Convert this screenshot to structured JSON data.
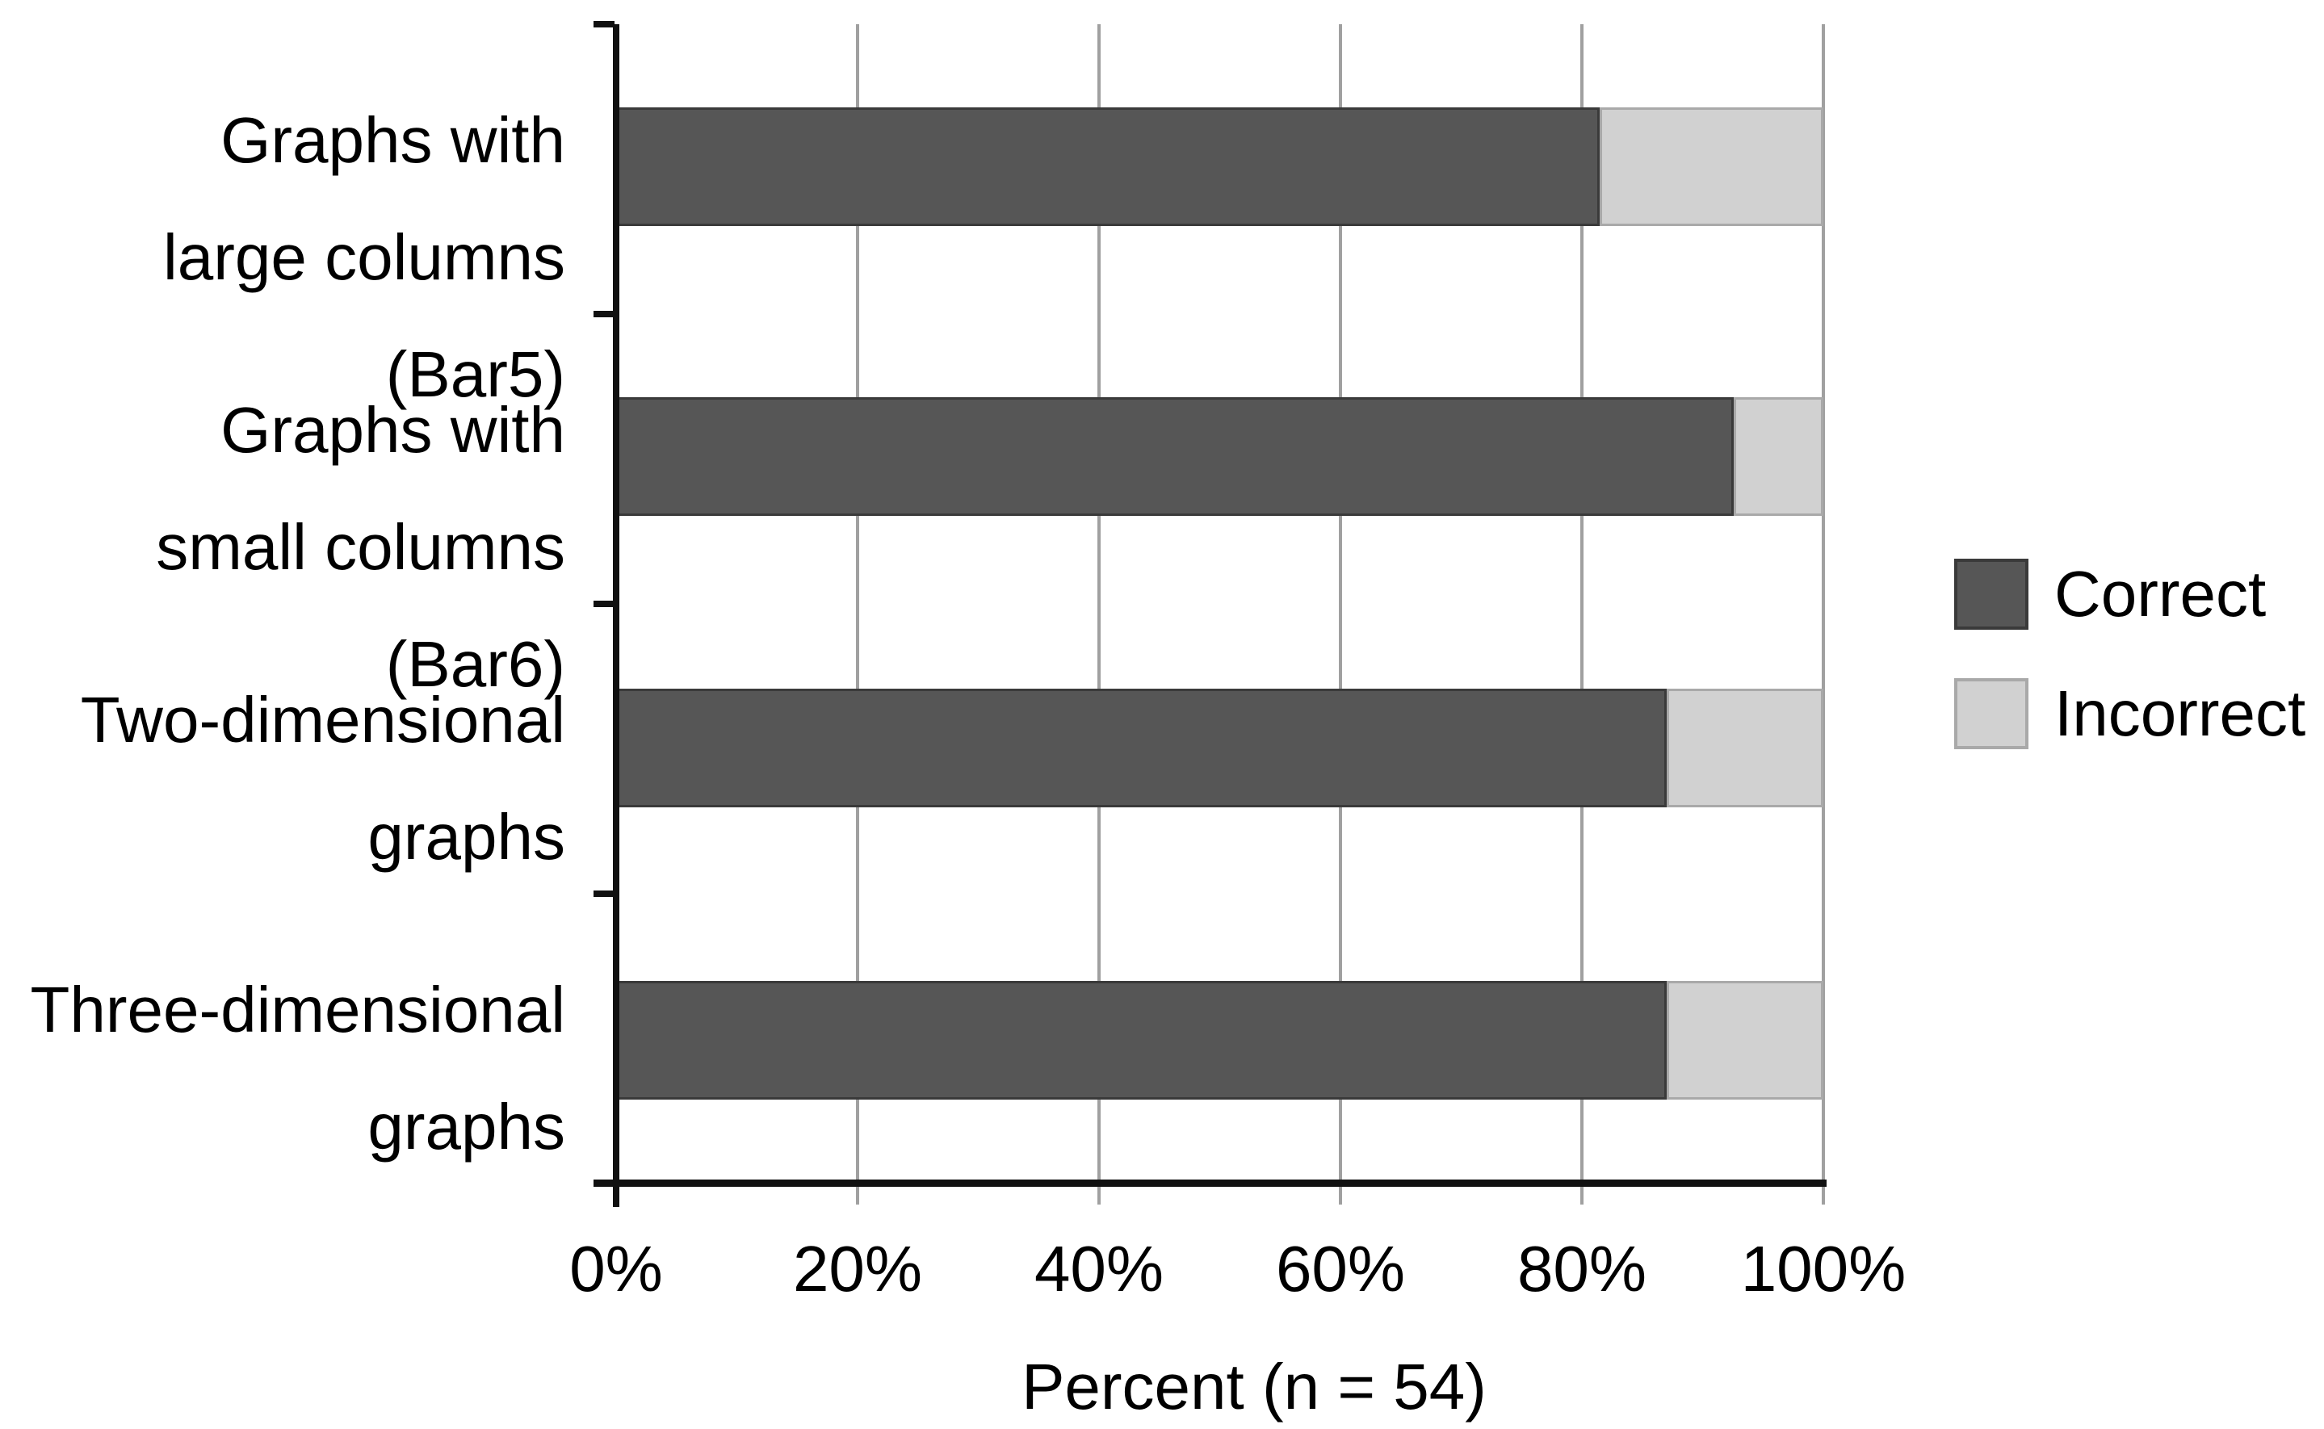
{
  "chart_data": {
    "type": "bar",
    "orientation": "horizontal",
    "stacked": true,
    "categories": [
      "Graphs with\nlarge columns\n(Bar5)",
      "Graphs with\nsmall columns\n(Bar6)",
      "Two-dimensional\ngraphs",
      "Three-dimensional\ngraphs"
    ],
    "series": [
      {
        "name": "Correct",
        "values": [
          81.5,
          92.6,
          87.0,
          87.0
        ],
        "color": "#565656",
        "border_color": "#3a3a3a"
      },
      {
        "name": "Incorrect",
        "values": [
          18.5,
          7.4,
          13.0,
          13.0
        ],
        "color": "#d1d1d1",
        "border_color": "#a9a9a9"
      }
    ],
    "xlabel": "Percent (n = 54)",
    "x_ticks": [
      "0%",
      "20%",
      "40%",
      "60%",
      "80%",
      "100%"
    ],
    "xlim": [
      0,
      100
    ],
    "grid": true,
    "gridline_color": "#a0a0a0",
    "axis_color": "#111111",
    "legend_position": "right"
  }
}
